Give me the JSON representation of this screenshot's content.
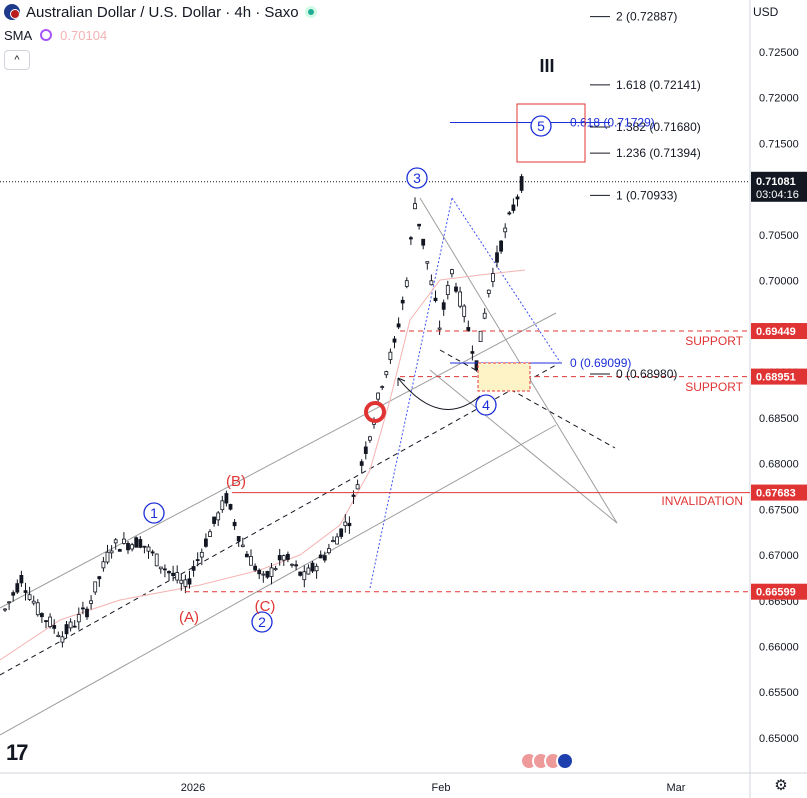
{
  "header": {
    "title": "Australian Dollar / U.S. Dollar · 4h · Saxo",
    "indicator_name": "SMA",
    "indicator_value": "0.70104",
    "currency": "USD",
    "collapse_symbol": "^"
  },
  "chart_data": {
    "type": "candlestick",
    "title": "Australian Dollar / U.S. Dollar · 4h · Saxo",
    "ylim": [
      0.645,
      0.729
    ],
    "y_ticks": [
      "0.72500",
      "0.72000",
      "0.71500",
      "0.71000",
      "0.70500",
      "0.70000",
      "0.69500",
      "0.69000",
      "0.68500",
      "0.68000",
      "0.67500",
      "0.67000",
      "0.66500",
      "0.66000",
      "0.65500",
      "0.65000"
    ],
    "x_ticks": [
      "2026",
      "Feb",
      "Mar"
    ],
    "price_path": [
      {
        "t": 0,
        "p": 0.664
      },
      {
        "t": 4,
        "p": 0.6675
      },
      {
        "t": 8,
        "p": 0.664
      },
      {
        "t": 14,
        "p": 0.6612
      },
      {
        "t": 20,
        "p": 0.664
      },
      {
        "t": 26,
        "p": 0.671
      },
      {
        "t": 33,
        "p": 0.6715
      },
      {
        "t": 38,
        "p": 0.669
      },
      {
        "t": 44,
        "p": 0.6665
      },
      {
        "t": 50,
        "p": 0.6725
      },
      {
        "t": 54,
        "p": 0.6762
      },
      {
        "t": 58,
        "p": 0.671
      },
      {
        "t": 63,
        "p": 0.6672
      },
      {
        "t": 68,
        "p": 0.6698
      },
      {
        "t": 73,
        "p": 0.6675
      },
      {
        "t": 78,
        "p": 0.67
      },
      {
        "t": 84,
        "p": 0.674
      },
      {
        "t": 87,
        "p": 0.68
      },
      {
        "t": 90,
        "p": 0.685
      },
      {
        "t": 92,
        "p": 0.689
      },
      {
        "t": 95,
        "p": 0.693
      },
      {
        "t": 98,
        "p": 0.7
      },
      {
        "t": 100,
        "p": 0.7085
      },
      {
        "t": 103,
        "p": 0.702
      },
      {
        "t": 106,
        "p": 0.695
      },
      {
        "t": 109,
        "p": 0.701
      },
      {
        "t": 112,
        "p": 0.6965
      },
      {
        "t": 115,
        "p": 0.691
      },
      {
        "t": 118,
        "p": 0.699
      },
      {
        "t": 121,
        "p": 0.704
      },
      {
        "t": 124,
        "p": 0.708
      },
      {
        "t": 127,
        "p": 0.712
      }
    ],
    "last_price": "0.71081",
    "countdown": "03:04:16",
    "price_labels": [
      {
        "value": 0.69449,
        "text": "0.69449",
        "color": "#e03434"
      },
      {
        "value": 0.68951,
        "text": "0.68951",
        "color": "#e03434"
      },
      {
        "value": 0.67683,
        "text": "0.67683",
        "color": "#e03434"
      },
      {
        "value": 0.66599,
        "text": "0.66599",
        "color": "#e03434"
      }
    ],
    "fib_levels": [
      {
        "value": 0.72887,
        "text": "2 (0.72887)"
      },
      {
        "value": 0.72141,
        "text": "1.618 (0.72141)"
      },
      {
        "value": 0.7168,
        "text": "1.382 (0.71680)"
      },
      {
        "value": 0.71394,
        "text": "1.236 (0.71394)"
      },
      {
        "value": 0.70933,
        "text": "1 (0.70933)"
      },
      {
        "value": 0.6898,
        "text": "0 (0.68980)"
      }
    ],
    "fib_blue": [
      {
        "value": 0.71729,
        "text": "0.618 (0.71729)"
      },
      {
        "value": 0.69099,
        "text": "0 (0.69099)"
      }
    ],
    "wave_labels": [
      "1",
      "2",
      "3",
      "4",
      "5",
      "III"
    ],
    "correction_labels": [
      "(A)",
      "(B)",
      "(C)"
    ],
    "annotations": {
      "support_1": "SUPPORT",
      "support_2": "SUPPORT",
      "invalidation": "INVALIDATION"
    },
    "colors": {
      "bull_bear": "#131722",
      "support": "#e03434",
      "wave": "#1c2fd8",
      "channel": "#9e9e9e",
      "sma": "#f4b3b3"
    }
  }
}
